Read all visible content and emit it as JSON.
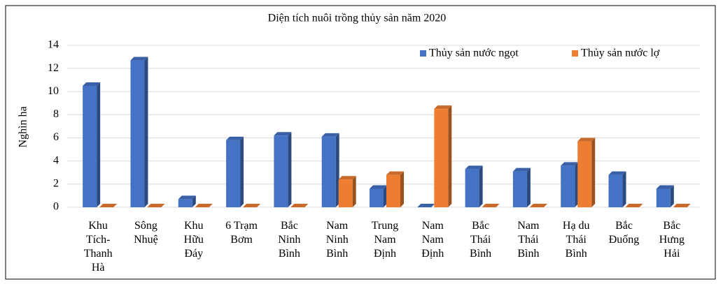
{
  "chart_data": {
    "type": "bar",
    "title": "Diện tích nuôi trồng thủy sản năm 2020",
    "y_label": "Nghìn ha",
    "categories": [
      "Khu\nTích-\nThanh\nHà",
      "Sông\nNhuệ",
      "Khu\nHữu\nĐáy",
      "6 Trạm\nBơm",
      "Bắc\nNinh\nBình",
      "Nam\nNinh\nBình",
      "Trung\nNam\nĐịnh",
      "Nam\nNam\nĐịnh",
      "Bắc\nThái\nBình",
      "Nam\nThái\nBình",
      "Hạ du\nThái\nBình",
      "Bắc\nĐuống",
      "Bắc\nHưng\nHải"
    ],
    "series": [
      {
        "name": "Thủy sản nước ngọt",
        "color": "#4472c4",
        "values": [
          10.5,
          12.7,
          0.7,
          5.8,
          6.2,
          6.1,
          1.6,
          0,
          3.3,
          3.1,
          3.6,
          2.8,
          1.6
        ]
      },
      {
        "name": "Thủy sản nước lợ",
        "color": "#ed7d31",
        "values": [
          0,
          0,
          0,
          0,
          0,
          2.4,
          2.8,
          8.5,
          0,
          0,
          5.7,
          0,
          0
        ]
      }
    ],
    "ylim": [
      0,
      14
    ],
    "yticks": [
      0,
      2,
      4,
      6,
      8,
      10,
      12,
      14
    ],
    "grid": true,
    "legend": "top-right"
  }
}
